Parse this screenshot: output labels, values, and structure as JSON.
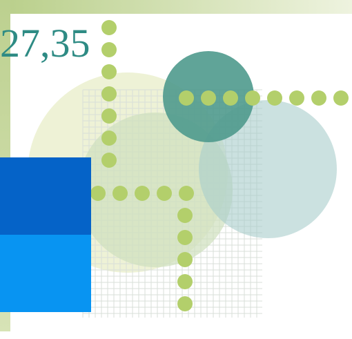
{
  "slide": {
    "text": "27,35"
  }
}
